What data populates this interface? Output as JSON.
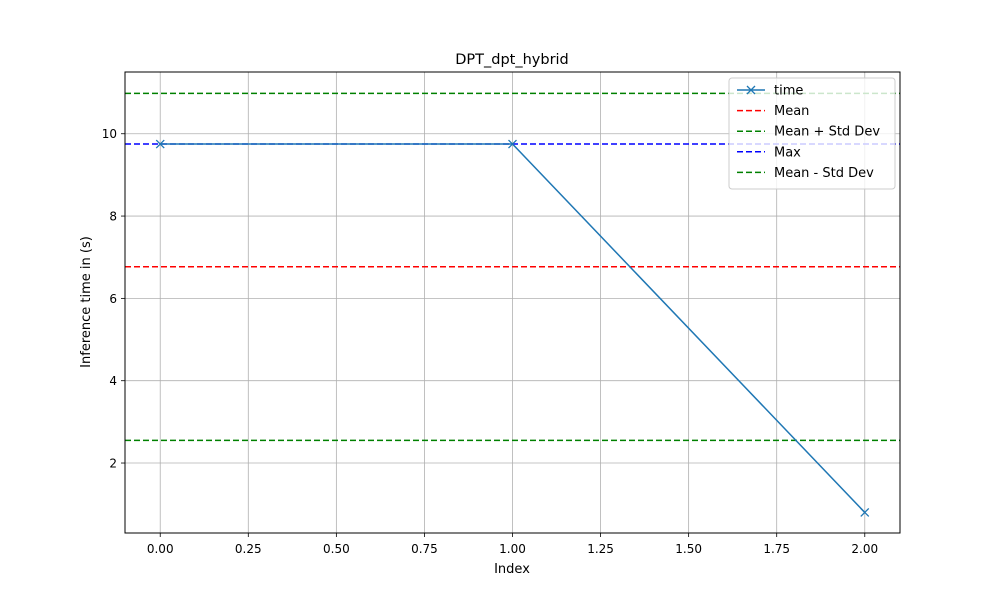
{
  "chart_data": {
    "type": "line",
    "title": "DPT_dpt_hybrid",
    "xlabel": "Index",
    "ylabel": "Inference time in (s)",
    "xlim": [
      -0.1,
      2.1
    ],
    "ylim": [
      0.3,
      11.5
    ],
    "xticks": [
      0.0,
      0.25,
      0.5,
      0.75,
      1.0,
      1.25,
      1.5,
      1.75,
      2.0
    ],
    "xtick_labels": [
      "0.00",
      "0.25",
      "0.50",
      "0.75",
      "1.00",
      "1.25",
      "1.50",
      "1.75",
      "2.00"
    ],
    "yticks": [
      2,
      4,
      6,
      8,
      10
    ],
    "ytick_labels": [
      "2",
      "4",
      "6",
      "8",
      "10"
    ],
    "grid": true,
    "legend_position": "top-right",
    "series": [
      {
        "name": "time",
        "x": [
          0,
          1,
          2
        ],
        "values": [
          9.75,
          9.75,
          0.8
        ],
        "color": "#1f77b4",
        "marker": "x",
        "style": "solid"
      }
    ],
    "hlines": [
      {
        "name": "Mean",
        "value": 6.77,
        "color": "#ff0000",
        "style": "dashed"
      },
      {
        "name": "Mean + Std Dev",
        "value": 10.98,
        "color": "#008000",
        "style": "dashed"
      },
      {
        "name": "Max",
        "value": 9.75,
        "color": "#0000ff",
        "style": "dashed"
      },
      {
        "name": "Mean - Std Dev",
        "value": 2.55,
        "color": "#008000",
        "style": "dashed"
      }
    ]
  }
}
